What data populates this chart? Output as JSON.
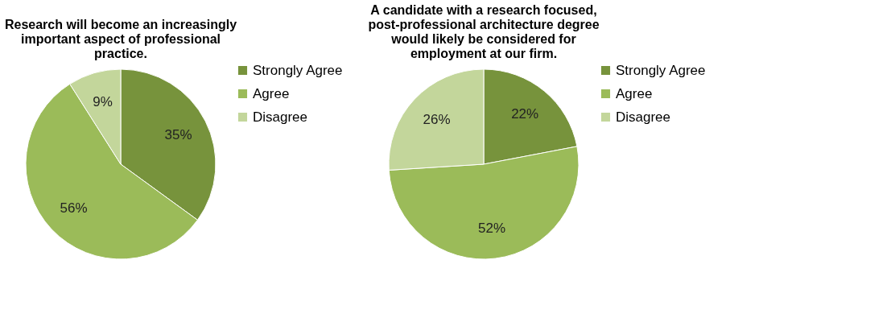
{
  "chart_data": [
    {
      "type": "pie",
      "title": "Research will become an increasingly important aspect of professional practice.",
      "categories": [
        "Strongly Agree",
        "Agree",
        "Disagree"
      ],
      "values": [
        35,
        56,
        9
      ],
      "colors": [
        "#77933c",
        "#9bbb59",
        "#c3d69b"
      ],
      "value_labels": [
        "35%",
        "56%",
        "9%"
      ],
      "legend": "right"
    },
    {
      "type": "pie",
      "title": "A candidate with a research focused, post-professional architecture degree would likely be considered for employment at our firm.",
      "categories": [
        "Strongly Agree",
        "Agree",
        "Disagree"
      ],
      "values": [
        22,
        52,
        26
      ],
      "colors": [
        "#77933c",
        "#9bbb59",
        "#c3d69b"
      ],
      "value_labels": [
        "22%",
        "52%",
        "26%"
      ],
      "legend": "right"
    }
  ]
}
